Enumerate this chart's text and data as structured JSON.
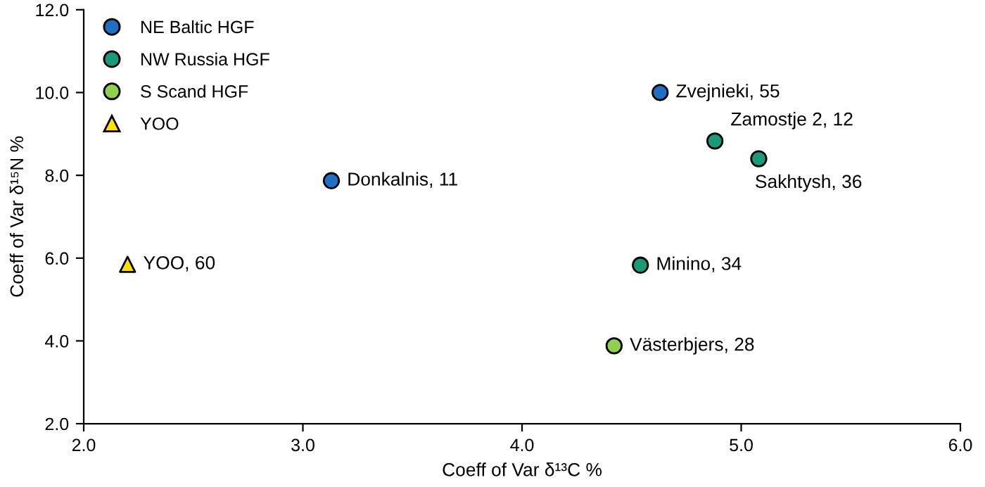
{
  "chart_data": {
    "type": "scatter",
    "xlabel": "Coeff of Var δ¹³C %",
    "ylabel": "Coeff of Var δ¹⁵N %",
    "xlim": [
      2,
      6
    ],
    "xticks": [
      {
        "value": 2,
        "label": "2.0"
      },
      {
        "value": 3,
        "label": "3.0"
      },
      {
        "value": 4,
        "label": "4.0"
      },
      {
        "value": 5,
        "label": "5.0"
      },
      {
        "value": 6,
        "label": "6.0"
      }
    ],
    "ylim": [
      2,
      12
    ],
    "yticks": [
      {
        "value": 2,
        "label": "2.0"
      },
      {
        "value": 4,
        "label": "4.0"
      },
      {
        "value": 6,
        "label": "6.0"
      },
      {
        "value": 8,
        "label": "8.0"
      },
      {
        "value": 10,
        "label": "10.0"
      },
      {
        "value": 12,
        "label": "12.0"
      }
    ],
    "grid": false,
    "legend": "top left",
    "series": [
      {
        "name": "NE Baltic HGF",
        "color": "#1f6fc4",
        "marker": "circle",
        "x": [
          3.13,
          4.63
        ],
        "values": [
          7.87,
          10.0
        ]
      },
      {
        "name": "NW Russia HGF",
        "color": "#1a9a7a",
        "marker": "circle",
        "x": [
          4.88,
          5.08,
          4.54
        ],
        "values": [
          8.83,
          8.4,
          5.83
        ]
      },
      {
        "name": "S Scand HGF",
        "color": "#8fd14f",
        "marker": "circle",
        "x": [
          4.42
        ],
        "values": [
          3.88
        ]
      },
      {
        "name": "YOO",
        "color": "#ffe000",
        "marker": "triangle",
        "x": [
          2.2
        ],
        "values": [
          5.85
        ]
      }
    ],
    "annotations": [
      {
        "text": "Donkalnis, 11",
        "x": 3.13,
        "y": 7.87
      },
      {
        "text": "Zvejnieki, 55",
        "x": 4.63,
        "y": 10.0
      },
      {
        "text": "Zamostje 2, 12",
        "x": 4.88,
        "y": 8.83
      },
      {
        "text": "Sakhtysh, 36",
        "x": 5.08,
        "y": 8.4
      },
      {
        "text": "Minino, 34",
        "x": 4.54,
        "y": 5.83
      },
      {
        "text": "Västerbjers, 28",
        "x": 4.42,
        "y": 3.88
      },
      {
        "text": "YOO, 60",
        "x": 2.2,
        "y": 5.85
      }
    ]
  }
}
